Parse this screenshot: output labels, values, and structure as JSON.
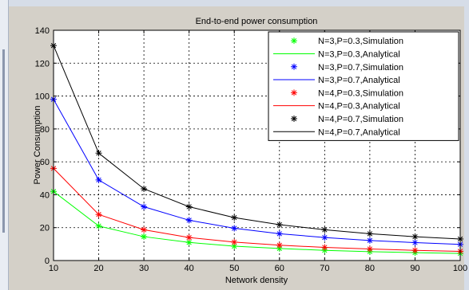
{
  "chart_data": {
    "type": "line",
    "title": "End-to-end power consumption",
    "xlabel": "Network density",
    "ylabel": "Power Consumption",
    "x": [
      10,
      20,
      30,
      40,
      50,
      60,
      70,
      80,
      90,
      100
    ],
    "xlim": [
      10,
      100
    ],
    "ylim": [
      0,
      140
    ],
    "xticks": [
      "10",
      "20",
      "30",
      "40",
      "50",
      "60",
      "70",
      "80",
      "90",
      "100"
    ],
    "yticks": [
      "0",
      "20",
      "40",
      "60",
      "80",
      "100",
      "120",
      "140"
    ],
    "grid": true,
    "legend_position": "top-right",
    "series": [
      {
        "name": "N=3,P=0.3,Simulation",
        "style": "markers",
        "marker": "star",
        "color": "#00ff00",
        "values": [
          42,
          21,
          14.5,
          11,
          8.7,
          7.3,
          6.2,
          5.4,
          4.8,
          4.3
        ]
      },
      {
        "name": "N=3,P=0.3,Analytical",
        "style": "line",
        "color": "#00ff00",
        "values": [
          42,
          21,
          14.5,
          11,
          8.7,
          7.3,
          6.2,
          5.4,
          4.8,
          4.3
        ]
      },
      {
        "name": "N=3,P=0.7,Simulation",
        "style": "markers",
        "marker": "star",
        "color": "#0000ff",
        "values": [
          98,
          49,
          32.7,
          24.5,
          19.6,
          16.3,
          14,
          12.2,
          10.9,
          9.8
        ]
      },
      {
        "name": "N=3,P=0.7,Analytical",
        "style": "line",
        "color": "#0000ff",
        "values": [
          98,
          49,
          32.7,
          24.5,
          19.6,
          16.3,
          14,
          12.2,
          10.9,
          9.8
        ]
      },
      {
        "name": "N=4,P=0.3,Simulation",
        "style": "markers",
        "marker": "star",
        "color": "#ff0000",
        "values": [
          56,
          28,
          18.7,
          14,
          11.2,
          9.3,
          8,
          7,
          6.2,
          5.6
        ]
      },
      {
        "name": "N=4,P=0.3,Analytical",
        "style": "line",
        "color": "#ff0000",
        "values": [
          56,
          28,
          18.7,
          14,
          11.2,
          9.3,
          8,
          7,
          6.2,
          5.6
        ]
      },
      {
        "name": "N=4,P=0.7,Simulation",
        "style": "markers",
        "marker": "star",
        "color": "#000000",
        "values": [
          130.7,
          65.3,
          43.6,
          32.7,
          26.1,
          21.8,
          18.7,
          16.3,
          14.5,
          13.1
        ]
      },
      {
        "name": "N=4,P=0.7,Analytical",
        "style": "line",
        "color": "#000000",
        "values": [
          130.7,
          65.3,
          43.6,
          32.7,
          26.1,
          21.8,
          18.7,
          16.3,
          14.5,
          13.1
        ]
      }
    ]
  }
}
